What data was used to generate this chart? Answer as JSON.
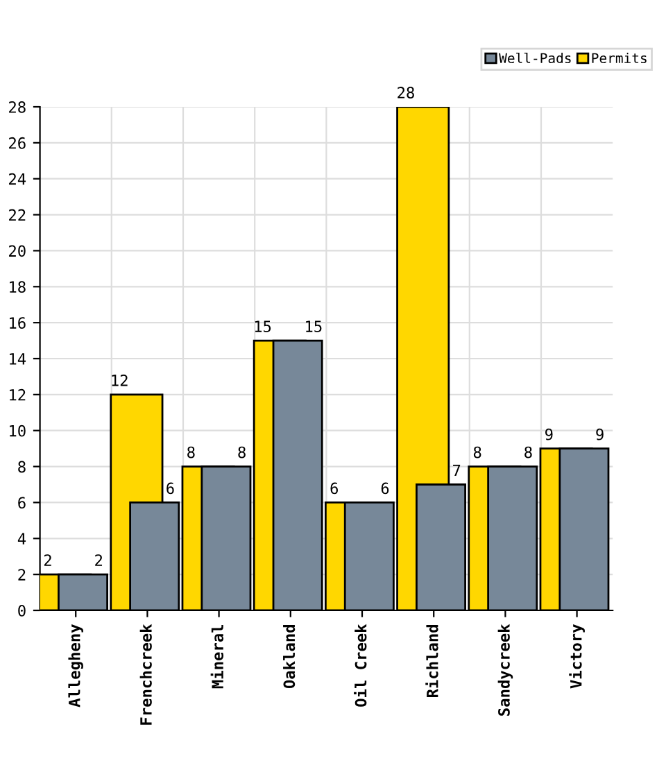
{
  "chart_data": {
    "type": "bar",
    "categories": [
      "Allegheny",
      "Frenchcreek",
      "Mineral",
      "Oakland",
      "Oil Creek",
      "Richland",
      "Sandycreek",
      "Victory"
    ],
    "series": [
      {
        "name": "Well-Pads",
        "color": "#778899",
        "values": [
          2,
          6,
          8,
          15,
          6,
          7,
          8,
          9
        ]
      },
      {
        "name": "Permits",
        "color": "#ffd700",
        "values": [
          2,
          12,
          8,
          15,
          6,
          28,
          8,
          9
        ]
      }
    ],
    "ylim": [
      0,
      28
    ],
    "yticks": [
      0,
      2,
      4,
      6,
      8,
      10,
      12,
      14,
      16,
      18,
      20,
      22,
      24,
      26,
      28
    ],
    "grid": true,
    "legend": "top right",
    "data_labels": true
  }
}
